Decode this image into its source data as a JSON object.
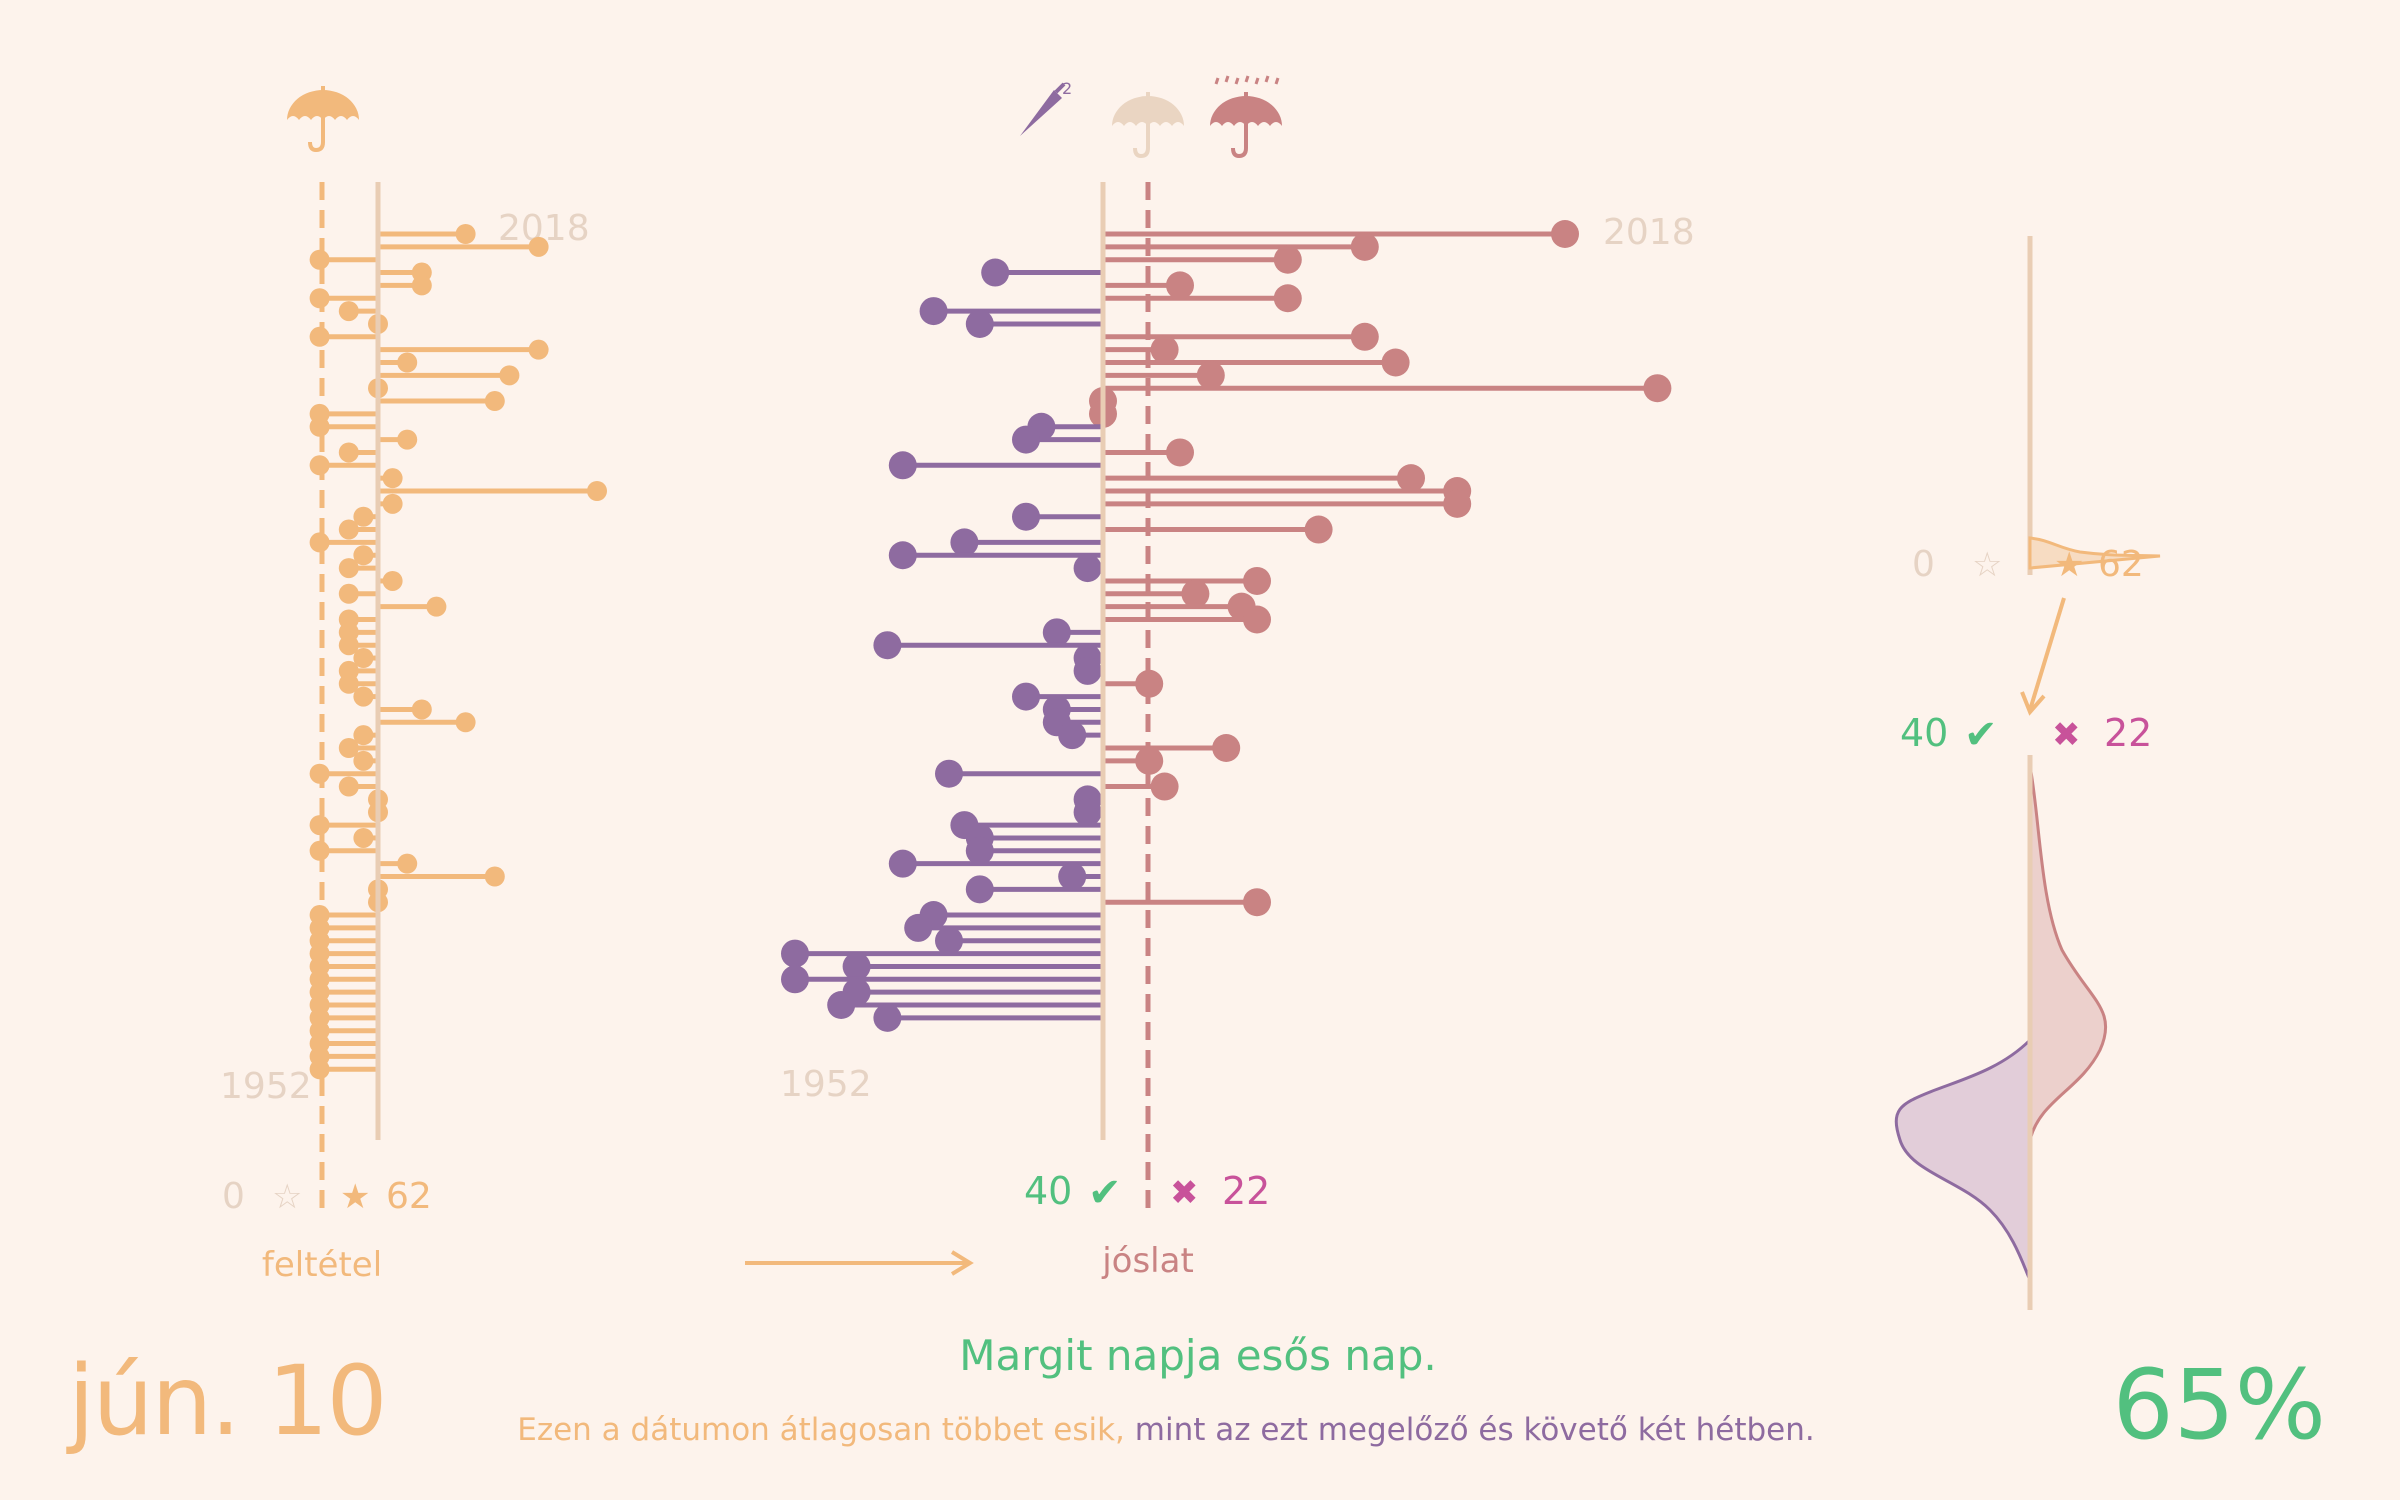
{
  "colors": {
    "background": "#fdf3ec",
    "condition": "#f2b97c",
    "axis": "#e9cdb4",
    "dry": "#8e6ba0",
    "rain": "#c98383",
    "ok": "#52c07f",
    "bad": "#c8529a",
    "faint": "#e6d3c4"
  },
  "icons": {
    "condition": "umbrella-icon",
    "prediction_dry": "closed-umbrella-icon",
    "prediction_neutral": "umbrella-icon",
    "prediction_rain": "umbrella-rain-icon"
  },
  "date_label": "jún. 10",
  "headline": "Margit napja esős nap.",
  "subline_part1": "Ezen a dátumon átlagosan többet esik,",
  "subline_part2": "mint az ezt megelőző és követő két hétben.",
  "percentage": "65%",
  "condition_panel": {
    "label": "feltétel",
    "year_top": "2018",
    "year_bottom": "1952",
    "scale_min": "0",
    "scale_max": "62",
    "star_empty": "☆",
    "star_full": "★"
  },
  "prediction_panel": {
    "label": "jóslat",
    "year_top": "2018",
    "year_bottom": "1952",
    "correct_count": "40",
    "wrong_count": "22",
    "check_mark": "✔",
    "cross_mark": "✖"
  },
  "distribution_panel": {
    "scale_min": "0",
    "scale_max": "62",
    "star_empty": "☆",
    "star_full": "★",
    "correct_count": "40",
    "wrong_count": "22",
    "check_mark": "✔",
    "cross_mark": "✖"
  },
  "chart_data": [
    {
      "type": "lollipop",
      "panel": "feltétel",
      "x_range": [
        1952,
        2018
      ],
      "points": [
        {
          "year": 2018,
          "value": 6
        },
        {
          "year": 2017,
          "value": 11
        },
        {
          "year": 2016,
          "value": -4
        },
        {
          "year": 2015,
          "value": 3
        },
        {
          "year": 2014,
          "value": 3
        },
        {
          "year": 2013,
          "value": -4
        },
        {
          "year": 2012,
          "value": -2
        },
        {
          "year": 2011,
          "value": 0
        },
        {
          "year": 2010,
          "value": -4
        },
        {
          "year": 2009,
          "value": 11
        },
        {
          "year": 2008,
          "value": 2
        },
        {
          "year": 2007,
          "value": 9
        },
        {
          "year": 2006,
          "value": 0
        },
        {
          "year": 2005,
          "value": 8
        },
        {
          "year": 2004,
          "value": -4
        },
        {
          "year": 2003,
          "value": -4
        },
        {
          "year": 2002,
          "value": 2
        },
        {
          "year": 2001,
          "value": -2
        },
        {
          "year": 2000,
          "value": -4
        },
        {
          "year": 1999,
          "value": 1
        },
        {
          "year": 1998,
          "value": 15
        },
        {
          "year": 1997,
          "value": 1
        },
        {
          "year": 1996,
          "value": -1
        },
        {
          "year": 1995,
          "value": -2
        },
        {
          "year": 1994,
          "value": -4
        },
        {
          "year": 1993,
          "value": -1
        },
        {
          "year": 1992,
          "value": -2
        },
        {
          "year": 1991,
          "value": 1
        },
        {
          "year": 1990,
          "value": -2
        },
        {
          "year": 1989,
          "value": 4
        },
        {
          "year": 1988,
          "value": -2
        },
        {
          "year": 1987,
          "value": -2
        },
        {
          "year": 1986,
          "value": -2
        },
        {
          "year": 1985,
          "value": -1
        },
        {
          "year": 1984,
          "value": -2
        },
        {
          "year": 1983,
          "value": -2
        },
        {
          "year": 1982,
          "value": -1
        },
        {
          "year": 1981,
          "value": 3
        },
        {
          "year": 1980,
          "value": 6
        },
        {
          "year": 1979,
          "value": -1
        },
        {
          "year": 1978,
          "value": -2
        },
        {
          "year": 1977,
          "value": -1
        },
        {
          "year": 1976,
          "value": -4
        },
        {
          "year": 1975,
          "value": -2
        },
        {
          "year": 1974,
          "value": 0
        },
        {
          "year": 1973,
          "value": 0
        },
        {
          "year": 1972,
          "value": -4
        },
        {
          "year": 1971,
          "value": -1
        },
        {
          "year": 1970,
          "value": -4
        },
        {
          "year": 1969,
          "value": 2
        },
        {
          "year": 1968,
          "value": 8
        },
        {
          "year": 1967,
          "value": 0
        },
        {
          "year": 1966,
          "value": 0
        },
        {
          "year": 1965,
          "value": -4
        },
        {
          "year": 1964,
          "value": -4
        },
        {
          "year": 1963,
          "value": -4
        },
        {
          "year": 1962,
          "value": -4
        },
        {
          "year": 1961,
          "value": -4
        },
        {
          "year": 1960,
          "value": -4
        },
        {
          "year": 1959,
          "value": -4
        },
        {
          "year": 1958,
          "value": -4
        },
        {
          "year": 1957,
          "value": -4
        },
        {
          "year": 1956,
          "value": -4
        },
        {
          "year": 1955,
          "value": -4
        },
        {
          "year": 1954,
          "value": -4
        },
        {
          "year": 1953,
          "value": -4
        }
      ]
    },
    {
      "type": "lollipop",
      "panel": "jóslat",
      "x_range": [
        1952,
        2018
      ],
      "points": [
        {
          "year": 2018,
          "value": 30
        },
        {
          "year": 2017,
          "value": 17
        },
        {
          "year": 2016,
          "value": 12
        },
        {
          "year": 2015,
          "value": -7
        },
        {
          "year": 2014,
          "value": 5
        },
        {
          "year": 2013,
          "value": 12
        },
        {
          "year": 2012,
          "value": -11
        },
        {
          "year": 2011,
          "value": -8
        },
        {
          "year": 2010,
          "value": 17
        },
        {
          "year": 2009,
          "value": 4
        },
        {
          "year": 2008,
          "value": 19
        },
        {
          "year": 2007,
          "value": 7
        },
        {
          "year": 2006,
          "value": 36
        },
        {
          "year": 2005,
          "value": 0
        },
        {
          "year": 2004,
          "value": 0
        },
        {
          "year": 2003,
          "value": -4
        },
        {
          "year": 2002,
          "value": -5
        },
        {
          "year": 2001,
          "value": 5
        },
        {
          "year": 2000,
          "value": -13
        },
        {
          "year": 1999,
          "value": 20
        },
        {
          "year": 1998,
          "value": 23
        },
        {
          "year": 1997,
          "value": 23
        },
        {
          "year": 1996,
          "value": -5
        },
        {
          "year": 1995,
          "value": 14
        },
        {
          "year": 1994,
          "value": -9
        },
        {
          "year": 1993,
          "value": -13
        },
        {
          "year": 1992,
          "value": -1
        },
        {
          "year": 1991,
          "value": 10
        },
        {
          "year": 1990,
          "value": 6
        },
        {
          "year": 1989,
          "value": 9
        },
        {
          "year": 1988,
          "value": 10
        },
        {
          "year": 1987,
          "value": -3
        },
        {
          "year": 1986,
          "value": -14
        },
        {
          "year": 1985,
          "value": -1
        },
        {
          "year": 1984,
          "value": -1
        },
        {
          "year": 1983,
          "value": 3
        },
        {
          "year": 1982,
          "value": -5
        },
        {
          "year": 1981,
          "value": -3
        },
        {
          "year": 1980,
          "value": -3
        },
        {
          "year": 1979,
          "value": -2
        },
        {
          "year": 1978,
          "value": 8
        },
        {
          "year": 1977,
          "value": 3
        },
        {
          "year": 1976,
          "value": -10
        },
        {
          "year": 1975,
          "value": 4
        },
        {
          "year": 1974,
          "value": -1
        },
        {
          "year": 1973,
          "value": -1
        },
        {
          "year": 1972,
          "value": -9
        },
        {
          "year": 1971,
          "value": -8
        },
        {
          "year": 1970,
          "value": -8
        },
        {
          "year": 1969,
          "value": -13
        },
        {
          "year": 1968,
          "value": -2
        },
        {
          "year": 1967,
          "value": -8
        },
        {
          "year": 1966,
          "value": 10
        },
        {
          "year": 1965,
          "value": -11
        },
        {
          "year": 1964,
          "value": -12
        },
        {
          "year": 1963,
          "value": -10
        },
        {
          "year": 1962,
          "value": -20
        },
        {
          "year": 1961,
          "value": -16
        },
        {
          "year": 1960,
          "value": -20
        },
        {
          "year": 1959,
          "value": -16
        },
        {
          "year": 1958,
          "value": -17
        },
        {
          "year": 1957,
          "value": -14
        }
      ]
    },
    {
      "type": "area",
      "panel": "distribution",
      "series": [
        {
          "name": "",
          "values": [
            0,
            0.1,
            0.02,
            0.5,
            1,
            0.7,
            0.05,
            0
          ]
        },
        {
          "name": "",
          "values": [
            0,
            0.1,
            0.55,
            1,
            0.75,
            0.2,
            0.02,
            0
          ]
        }
      ]
    }
  ]
}
